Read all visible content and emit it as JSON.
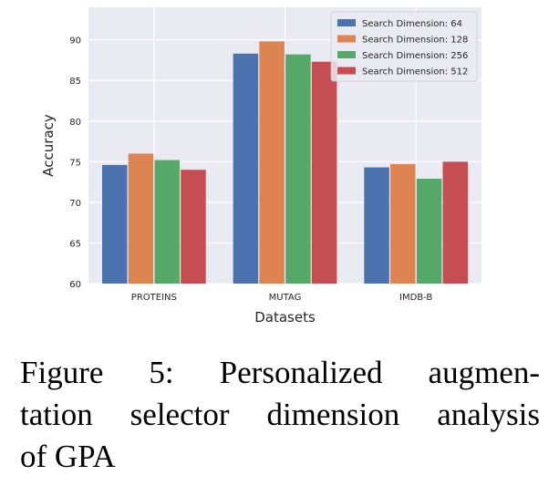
{
  "chart_data": {
    "type": "bar",
    "categories": [
      "PROTEINS",
      "MUTAG",
      "IMDB-B"
    ],
    "series": [
      {
        "name": "Search Dimension: 64",
        "color": "#4c72b0",
        "values": [
          74.6,
          88.3,
          74.3
        ]
      },
      {
        "name": "Search Dimension: 128",
        "color": "#dd8452",
        "values": [
          76.0,
          89.8,
          74.7
        ]
      },
      {
        "name": "Search Dimension: 256",
        "color": "#55a868",
        "values": [
          75.2,
          88.2,
          72.9
        ]
      },
      {
        "name": "Search Dimension: 512",
        "color": "#c44e52",
        "values": [
          74.0,
          87.3,
          75.0
        ]
      }
    ],
    "xlabel": "Datasets",
    "ylabel": "Accuracy",
    "ylim": [
      60,
      94
    ],
    "yticks": [
      60,
      65,
      70,
      75,
      80,
      85,
      90
    ],
    "grid": true,
    "legend_position": "top-right",
    "background_color": "#eaeaf2"
  },
  "caption": {
    "line1": "Figure 5: Personalized augmen-",
    "line2": "tation selector dimension analysis",
    "line3": "of GPA"
  }
}
